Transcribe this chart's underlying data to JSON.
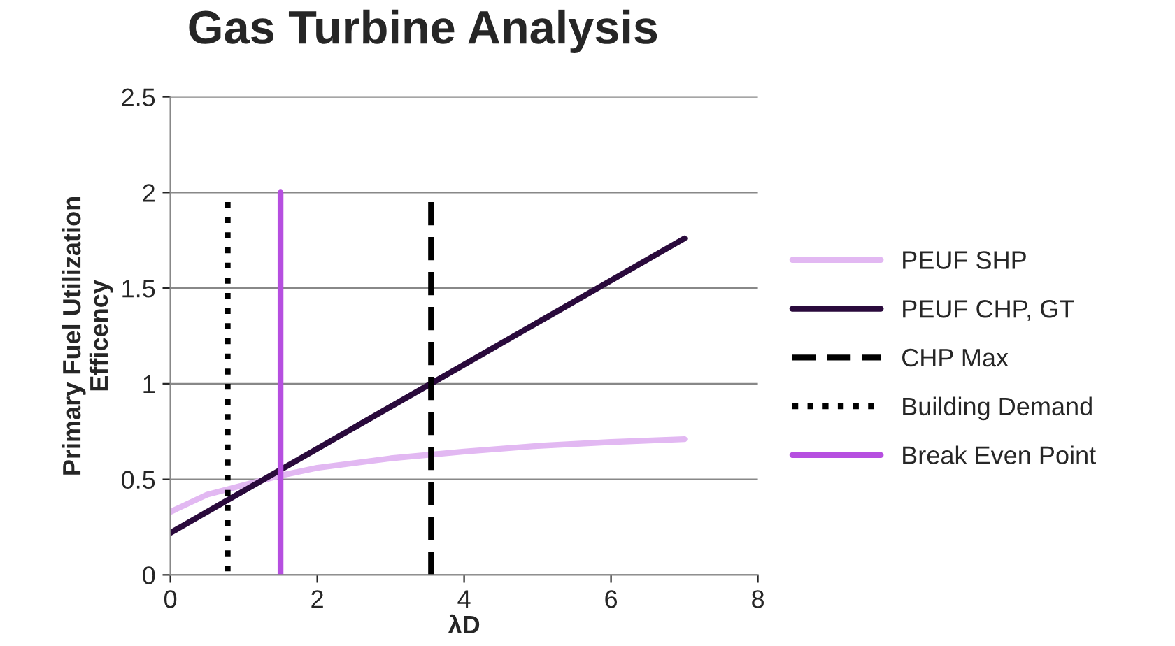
{
  "chart_data": {
    "type": "line",
    "title": "Gas Turbine Analysis",
    "xlabel": "λD",
    "ylabel": "Primary Fuel Utilization\nEfficency",
    "xlim": [
      0,
      8
    ],
    "xticks": [
      0,
      2,
      4,
      6,
      8
    ],
    "ylim": [
      0,
      2.5
    ],
    "yticks": [
      0,
      0.5,
      1,
      1.5,
      2,
      2.5
    ],
    "grid": "y",
    "legend": "right",
    "series": [
      {
        "name": "PEUF SHP",
        "color": "#e2b8f2",
        "x": [
          0,
          0.5,
          1,
          1.5,
          2,
          3,
          4,
          5,
          6,
          7
        ],
        "values": [
          0.33,
          0.42,
          0.47,
          0.52,
          0.56,
          0.61,
          0.645,
          0.675,
          0.695,
          0.71
        ]
      },
      {
        "name": "PEUF CHP, GT",
        "color": "#2a0a3c",
        "x": [
          0,
          7
        ],
        "values": [
          0.22,
          1.76
        ]
      },
      {
        "name": "CHP Max",
        "color": "#000000",
        "line_style": "dashed",
        "x": [
          3.55,
          3.55
        ],
        "values": [
          1.95,
          0
        ]
      },
      {
        "name": "Building Demand",
        "color": "#000000",
        "line_style": "dotted",
        "x": [
          0.78,
          0.78
        ],
        "values": [
          1.95,
          0
        ]
      },
      {
        "name": "Break Even Point",
        "color": "#b64fe0",
        "x": [
          1.5,
          1.5
        ],
        "values": [
          0,
          2.0
        ]
      }
    ]
  }
}
